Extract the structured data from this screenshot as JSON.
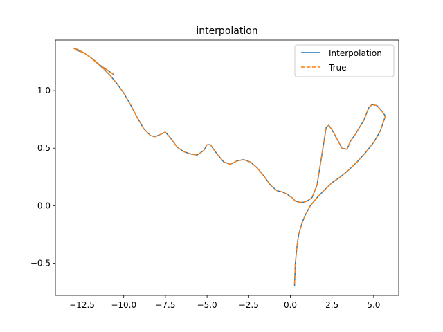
{
  "chart_data": {
    "type": "line",
    "title": "interpolation",
    "xlabel": "",
    "ylabel": "",
    "xlim": [
      -14.1,
      6.5
    ],
    "ylim": [
      -0.78,
      1.44
    ],
    "xticks": [
      -12.5,
      -10.0,
      -7.5,
      -5.0,
      -2.5,
      0.0,
      2.5,
      5.0
    ],
    "xtick_labels": [
      "−12.5",
      "−10.0",
      "−7.5",
      "−5.0",
      "−2.5",
      "0.0",
      "2.5",
      "5.0"
    ],
    "yticks": [
      -0.5,
      0.0,
      0.5,
      1.0
    ],
    "ytick_labels": [
      "−0.5",
      "0.0",
      "0.5",
      "1.0"
    ],
    "grid": false,
    "legend_position": "top-right",
    "colors": {
      "interpolation": "#1f77b4",
      "true": "#ff7f0e"
    },
    "series": [
      {
        "name": "Interpolation",
        "style": "solid",
        "x": [
          0.25,
          0.3,
          0.4,
          0.5,
          0.7,
          0.9,
          1.2,
          1.6,
          2.0,
          2.5,
          3.0,
          3.5,
          4.0,
          4.5,
          5.0,
          5.4,
          5.7,
          5.5,
          5.2,
          4.9,
          4.7,
          4.4,
          4.1,
          3.9,
          3.6,
          3.4,
          3.1,
          2.8,
          2.5,
          2.3,
          2.15,
          1.9,
          1.6,
          1.3,
          1.0,
          0.8,
          0.55,
          0.3,
          0.1,
          -0.2,
          -0.5,
          -0.8,
          -1.2,
          -1.6,
          -2.0,
          -2.4,
          -2.8,
          -3.2,
          -3.6,
          -4.0,
          -4.4,
          -4.8,
          -5.0,
          -5.2,
          -5.6,
          -6.0,
          -6.4,
          -6.8,
          -7.2,
          -7.5,
          -7.8,
          -8.1,
          -8.4,
          -8.8,
          -9.2,
          -9.6,
          -10.0,
          -10.4,
          -10.8,
          -11.2,
          -11.6,
          -12.0,
          -12.4,
          -12.8,
          -13.0,
          -12.8,
          -12.4,
          -11.9,
          -11.4,
          -10.9,
          -10.6
        ],
        "y": [
          -0.7,
          -0.5,
          -0.35,
          -0.25,
          -0.15,
          -0.08,
          0.0,
          0.07,
          0.13,
          0.2,
          0.25,
          0.31,
          0.38,
          0.46,
          0.55,
          0.65,
          0.78,
          0.82,
          0.87,
          0.88,
          0.85,
          0.74,
          0.67,
          0.62,
          0.56,
          0.49,
          0.5,
          0.58,
          0.66,
          0.7,
          0.68,
          0.45,
          0.18,
          0.07,
          0.04,
          0.03,
          0.03,
          0.04,
          0.07,
          0.1,
          0.12,
          0.13,
          0.18,
          0.26,
          0.33,
          0.38,
          0.4,
          0.39,
          0.36,
          0.38,
          0.45,
          0.53,
          0.53,
          0.48,
          0.44,
          0.45,
          0.47,
          0.51,
          0.59,
          0.64,
          0.62,
          0.6,
          0.61,
          0.67,
          0.77,
          0.88,
          0.98,
          1.06,
          1.13,
          1.19,
          1.24,
          1.29,
          1.33,
          1.35,
          1.37,
          1.36,
          1.33,
          1.28,
          1.22,
          1.17,
          1.14
        ]
      },
      {
        "name": "True",
        "style": "dashed",
        "x": [
          0.25,
          0.3,
          0.4,
          0.5,
          0.7,
          0.9,
          1.2,
          1.6,
          2.0,
          2.5,
          3.0,
          3.5,
          4.0,
          4.5,
          5.0,
          5.4,
          5.7,
          5.5,
          5.2,
          4.9,
          4.7,
          4.4,
          4.1,
          3.9,
          3.6,
          3.4,
          3.1,
          2.8,
          2.5,
          2.3,
          2.15,
          1.9,
          1.6,
          1.3,
          1.0,
          0.8,
          0.55,
          0.3,
          0.1,
          -0.2,
          -0.5,
          -0.8,
          -1.2,
          -1.6,
          -2.0,
          -2.4,
          -2.8,
          -3.2,
          -3.6,
          -4.0,
          -4.4,
          -4.8,
          -5.0,
          -5.2,
          -5.6,
          -6.0,
          -6.4,
          -6.8,
          -7.2,
          -7.5,
          -7.8,
          -8.1,
          -8.4,
          -8.8,
          -9.2,
          -9.6,
          -10.0,
          -10.4,
          -10.8,
          -11.2,
          -11.6,
          -12.0,
          -12.4,
          -12.8,
          -13.0,
          -12.8,
          -12.4,
          -11.9,
          -11.4,
          -10.9,
          -10.6
        ],
        "y": [
          -0.68,
          -0.5,
          -0.35,
          -0.25,
          -0.15,
          -0.08,
          0.0,
          0.07,
          0.13,
          0.2,
          0.25,
          0.31,
          0.38,
          0.46,
          0.55,
          0.65,
          0.78,
          0.82,
          0.87,
          0.88,
          0.85,
          0.74,
          0.67,
          0.62,
          0.56,
          0.49,
          0.5,
          0.58,
          0.66,
          0.7,
          0.68,
          0.45,
          0.18,
          0.07,
          0.04,
          0.03,
          0.03,
          0.04,
          0.07,
          0.1,
          0.12,
          0.13,
          0.18,
          0.26,
          0.33,
          0.38,
          0.4,
          0.39,
          0.36,
          0.38,
          0.45,
          0.53,
          0.53,
          0.48,
          0.44,
          0.45,
          0.47,
          0.51,
          0.59,
          0.64,
          0.62,
          0.6,
          0.61,
          0.67,
          0.77,
          0.88,
          0.98,
          1.06,
          1.13,
          1.19,
          1.24,
          1.29,
          1.33,
          1.35,
          1.37,
          1.36,
          1.33,
          1.28,
          1.22,
          1.17,
          1.14
        ]
      }
    ]
  }
}
